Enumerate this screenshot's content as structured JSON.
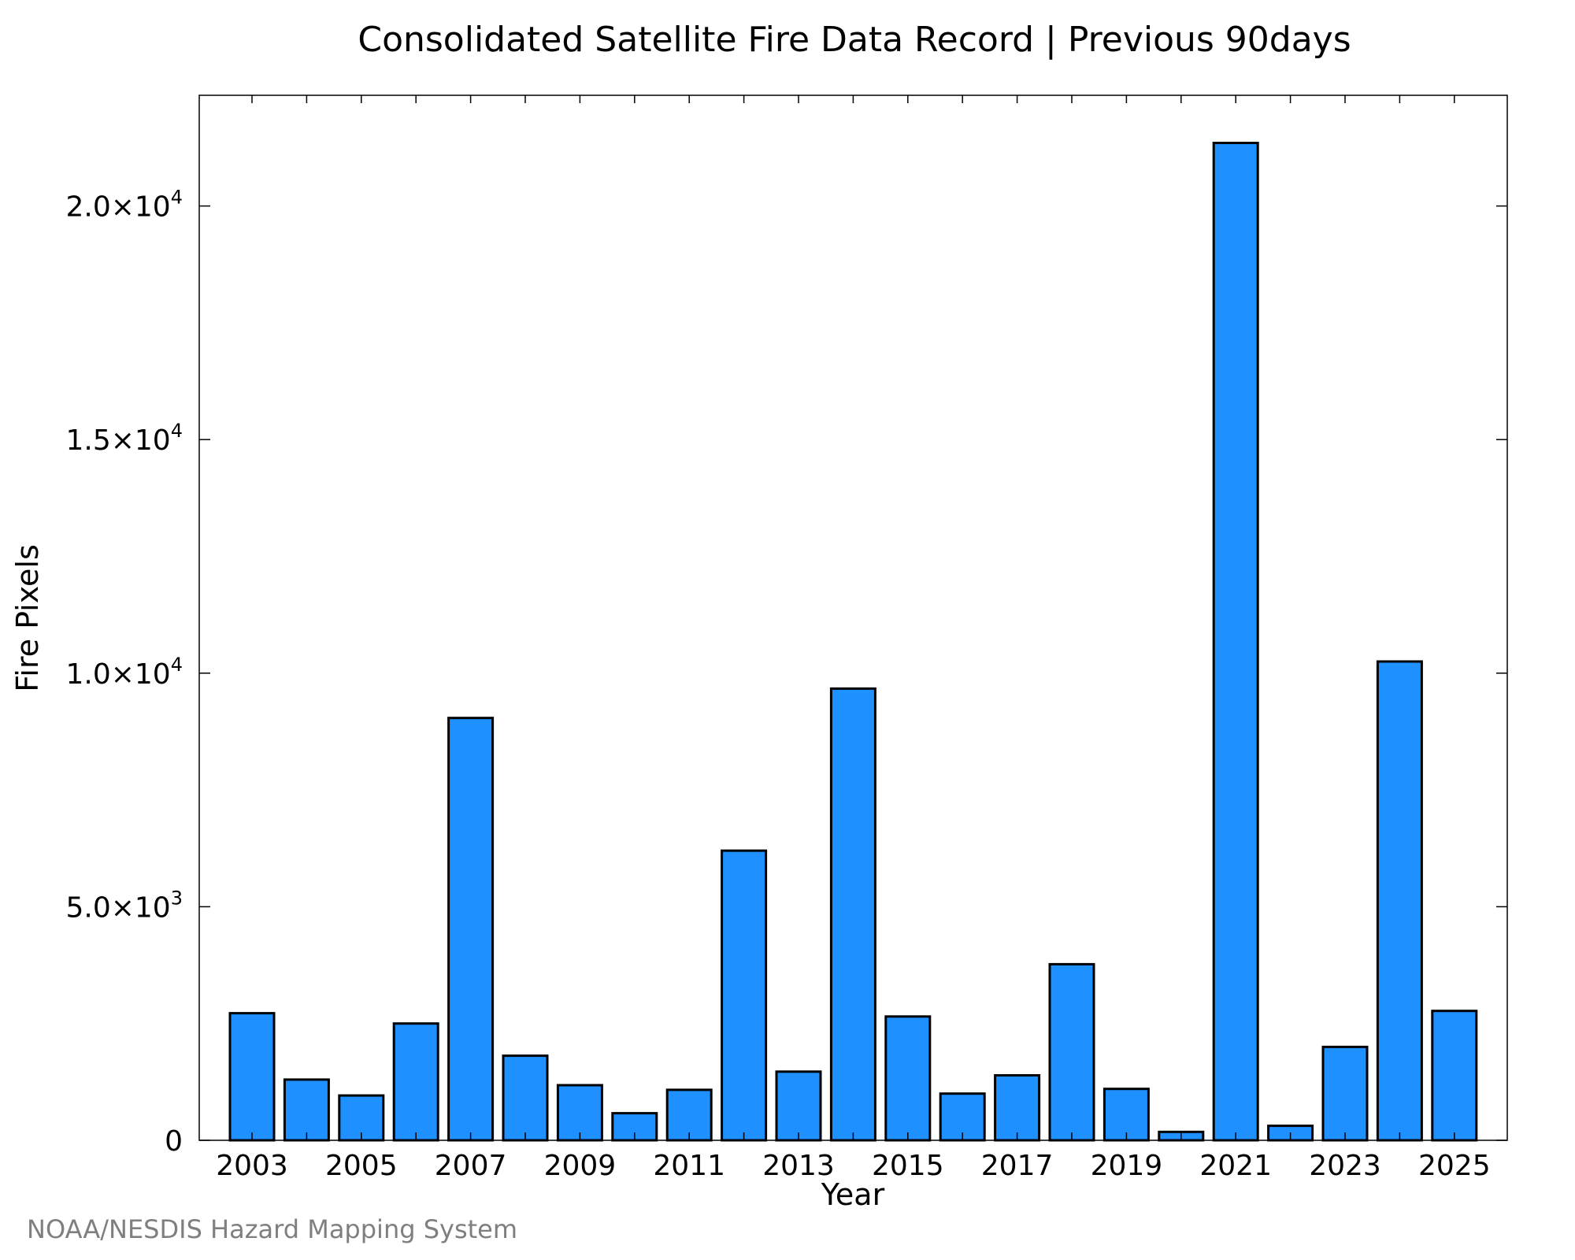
{
  "chart_data": {
    "type": "bar",
    "title": "Consolidated Satellite Fire Data Record | Previous 90days",
    "xlabel": "Year",
    "ylabel": "Fire Pixels",
    "credit": "NOAA/NESDIS Hazard Mapping System",
    "categories": [
      "2003",
      "2004",
      "2005",
      "2006",
      "2007",
      "2008",
      "2009",
      "2010",
      "2011",
      "2012",
      "2013",
      "2014",
      "2015",
      "2016",
      "2017",
      "2018",
      "2019",
      "2020",
      "2021",
      "2022",
      "2023",
      "2024",
      "2025"
    ],
    "x_tick_labels": [
      "2003",
      "2005",
      "2007",
      "2009",
      "2011",
      "2013",
      "2015",
      "2017",
      "2019",
      "2021",
      "2023",
      "2025"
    ],
    "values": [
      2720,
      1300,
      960,
      2500,
      9040,
      1810,
      1180,
      580,
      1080,
      6200,
      1470,
      9670,
      2650,
      1000,
      1390,
      3770,
      1100,
      180,
      21350,
      310,
      2000,
      10250,
      2770
    ],
    "ylim": [
      0,
      22370
    ],
    "y_ticks": [
      {
        "value": 0,
        "mantissa": "0",
        "exp": ""
      },
      {
        "value": 5000,
        "mantissa": "5.0×10",
        "exp": "3"
      },
      {
        "value": 10000,
        "mantissa": "1.0×10",
        "exp": "4"
      },
      {
        "value": 15000,
        "mantissa": "1.5×10",
        "exp": "4"
      },
      {
        "value": 20000,
        "mantissa": "2.0×10",
        "exp": "4"
      }
    ],
    "bar_color": "#1e90ff",
    "grid": false,
    "legend": "none"
  }
}
